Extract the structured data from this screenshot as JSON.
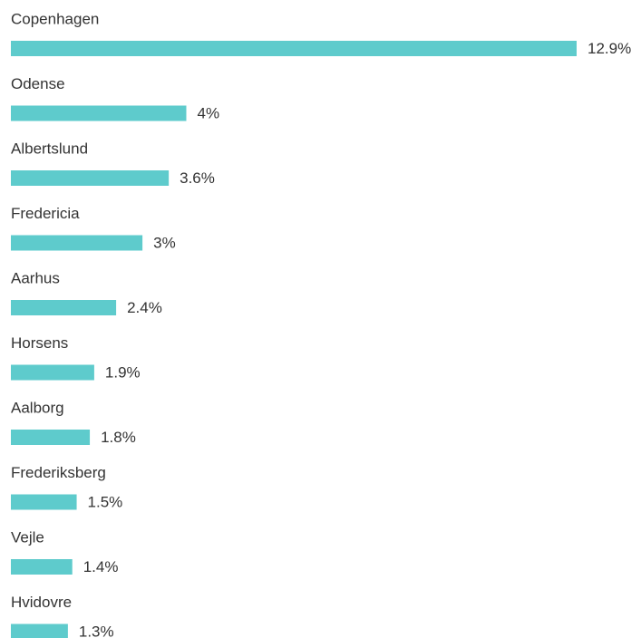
{
  "chart_data": {
    "type": "bar",
    "orientation": "horizontal",
    "color": "#5ecbcc",
    "categories": [
      "Copenhagen",
      "Odense",
      "Albertslund",
      "Fredericia",
      "Aarhus",
      "Horsens",
      "Aalborg",
      "Frederiksberg",
      "Vejle",
      "Hvidovre"
    ],
    "values": [
      12.9,
      4,
      3.6,
      3,
      2.4,
      1.9,
      1.8,
      1.5,
      1.4,
      1.3
    ],
    "value_labels": [
      "12.9%",
      "4%",
      "3.6%",
      "3%",
      "2.4%",
      "1.9%",
      "1.8%",
      "1.5%",
      "1.4%",
      "1.3%"
    ]
  }
}
